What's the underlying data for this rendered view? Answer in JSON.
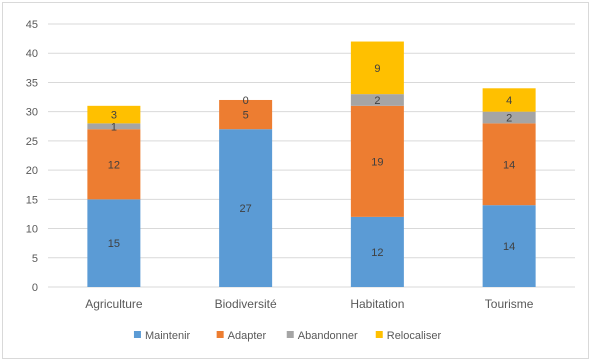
{
  "chart_data": {
    "type": "bar",
    "stacked": true,
    "categories": [
      "Agriculture",
      "Biodiversité",
      "Habitation",
      "Tourisme"
    ],
    "series": [
      {
        "name": "Maintenir",
        "color": "#5b9bd5",
        "values": [
          15,
          27,
          12,
          14
        ]
      },
      {
        "name": "Adapter",
        "color": "#ed7d31",
        "values": [
          12,
          5,
          19,
          14
        ]
      },
      {
        "name": "Abandonner",
        "color": "#a5a5a5",
        "values": [
          1,
          0,
          2,
          2
        ]
      },
      {
        "name": "Relocaliser",
        "color": "#ffc000",
        "values": [
          3,
          0,
          9,
          4
        ]
      }
    ],
    "data_labels": [
      [
        "15",
        "27",
        "12",
        "14"
      ],
      [
        "12",
        "5",
        "19",
        "14"
      ],
      [
        "1",
        "0",
        "2",
        "2"
      ],
      [
        "3",
        "",
        "9",
        "4"
      ]
    ],
    "ylim": [
      0,
      45
    ],
    "yticks": [
      0,
      5,
      10,
      15,
      20,
      25,
      30,
      35,
      40,
      45
    ],
    "grid": true,
    "legend_position": "bottom"
  }
}
